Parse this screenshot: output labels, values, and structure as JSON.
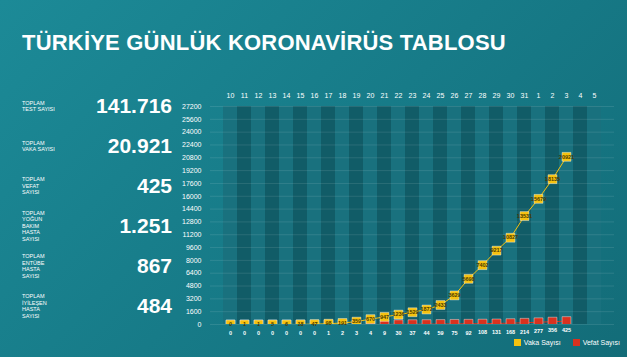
{
  "stats": [
    {
      "label": "TOPLAM TEST SAYISI",
      "value": "141.716"
    },
    {
      "label": "TOPLAM VAKA SAYISI",
      "value": "20.921"
    },
    {
      "label": "TOPLAM VEFAT SAYISI",
      "value": "425"
    },
    {
      "label": "TOPLAM YOĞUN BAKIM HASTA SAYISI",
      "value": "1.251"
    },
    {
      "label": "TOPLAM ENTÜBE HASTA SAYISI",
      "value": "867"
    },
    {
      "label": "TOPLAM İYİLEŞEN HASTA SAYISI",
      "value": "484"
    }
  ],
  "chart_data": {
    "type": "line",
    "title": "TÜRKİYE GÜNLÜK KORONAVİRÜS TABLOSU",
    "x": [
      "10",
      "11",
      "12",
      "13",
      "14",
      "15",
      "16",
      "17",
      "18",
      "19",
      "20",
      "21",
      "22",
      "23",
      "24",
      "25",
      "26",
      "27",
      "28",
      "29",
      "30",
      "31",
      "1",
      "2",
      "3",
      "4",
      "5"
    ],
    "series": [
      {
        "name": "Vaka Sayısı",
        "color": "#f6c20f",
        "values": [
          0,
          1,
          1,
          5,
          6,
          18,
          47,
          98,
          191,
          359,
          670,
          947,
          1236,
          1529,
          1872,
          2433,
          3629,
          5698,
          7402,
          9217,
          10827,
          13531,
          15679,
          18135,
          20921,
          null,
          null
        ]
      },
      {
        "name": "Vefat Sayısı",
        "color": "#d8321f",
        "values": [
          0,
          0,
          0,
          0,
          0,
          0,
          0,
          1,
          2,
          3,
          4,
          9,
          30,
          37,
          44,
          59,
          75,
          92,
          108,
          131,
          168,
          214,
          277,
          356,
          425,
          null,
          null
        ]
      }
    ],
    "ylim": [
      0,
      27200
    ],
    "yticks": [
      0,
      1600,
      3200,
      4800,
      6400,
      8000,
      9600,
      11200,
      12800,
      14400,
      16000,
      17600,
      19200,
      20800,
      22400,
      24000,
      25600,
      27200
    ],
    "grid": true,
    "data_labels": true,
    "marker": "square",
    "legend": "bottom-right"
  }
}
